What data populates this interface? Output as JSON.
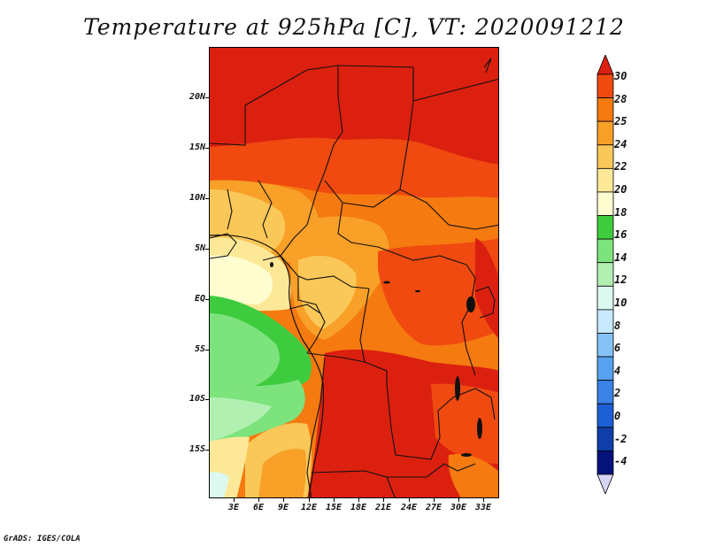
{
  "title": "Temperature at 925hPa [C], VT: 2020091212",
  "credit": "GrADS: IGES/COLA",
  "lat_labels": [
    "20N",
    "15N",
    "10N",
    "5N",
    "EQ",
    "5S",
    "10S",
    "15S"
  ],
  "lon_labels": [
    "3E",
    "6E",
    "9E",
    "12E",
    "15E",
    "18E",
    "21E",
    "24E",
    "27E",
    "30E",
    "33E"
  ],
  "colorbar": {
    "labels": [
      "30",
      "28",
      "25",
      "24",
      "22",
      "20",
      "18",
      "16",
      "14",
      "12",
      "10",
      "8",
      "6",
      "4",
      "2",
      "0",
      "-2",
      "-4"
    ],
    "colors": [
      "#dc2010",
      "#f04a10",
      "#f57a10",
      "#f8a028",
      "#fac858",
      "#fde898",
      "#fffdd0",
      "#3ecc3e",
      "#7de37d",
      "#b2f0b2",
      "#dcf8ef",
      "#c8e8ff",
      "#86c2f6",
      "#56a2ef",
      "#3a82e6",
      "#1d5fd4",
      "#0f3ea8",
      "#05127a",
      "#d6d6f4"
    ]
  }
}
